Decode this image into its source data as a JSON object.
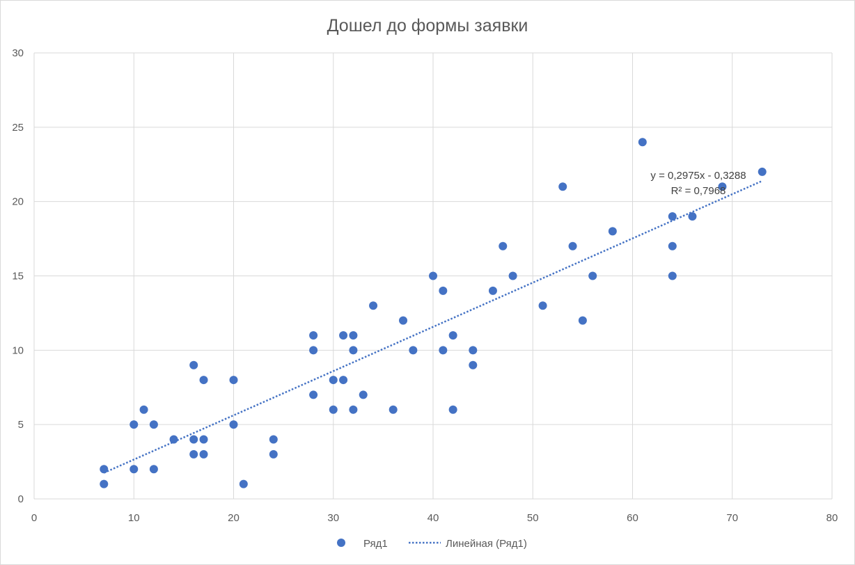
{
  "chart_data": {
    "type": "scatter",
    "title": "Дошел до формы заявки",
    "xlabel": "",
    "ylabel": "",
    "xlim": [
      0,
      80
    ],
    "ylim": [
      0,
      30
    ],
    "x_ticks": [
      0,
      10,
      20,
      30,
      40,
      50,
      60,
      70,
      80
    ],
    "y_ticks": [
      0,
      5,
      10,
      15,
      20,
      25,
      30
    ],
    "grid": true,
    "legend_position": "bottom",
    "series": [
      {
        "name": "Ряд1",
        "color": "#4472c4",
        "points": [
          [
            7,
            2
          ],
          [
            7,
            1
          ],
          [
            10,
            5
          ],
          [
            10,
            2
          ],
          [
            11,
            6
          ],
          [
            12,
            5
          ],
          [
            12,
            2
          ],
          [
            14,
            4
          ],
          [
            16,
            9
          ],
          [
            16,
            4
          ],
          [
            16,
            3
          ],
          [
            17,
            8
          ],
          [
            17,
            4
          ],
          [
            17,
            3
          ],
          [
            20,
            8
          ],
          [
            20,
            5
          ],
          [
            21,
            1
          ],
          [
            24,
            4
          ],
          [
            24,
            3
          ],
          [
            28,
            11
          ],
          [
            28,
            10
          ],
          [
            28,
            7
          ],
          [
            30,
            8
          ],
          [
            30,
            6
          ],
          [
            31,
            11
          ],
          [
            31,
            8
          ],
          [
            32,
            11
          ],
          [
            32,
            10
          ],
          [
            32,
            6
          ],
          [
            33,
            7
          ],
          [
            34,
            13
          ],
          [
            36,
            6
          ],
          [
            37,
            12
          ],
          [
            38,
            10
          ],
          [
            40,
            15
          ],
          [
            41,
            14
          ],
          [
            41,
            10
          ],
          [
            42,
            11
          ],
          [
            42,
            6
          ],
          [
            44,
            10
          ],
          [
            44,
            9
          ],
          [
            46,
            14
          ],
          [
            47,
            17
          ],
          [
            48,
            15
          ],
          [
            51,
            13
          ],
          [
            53,
            21
          ],
          [
            54,
            17
          ],
          [
            55,
            12
          ],
          [
            56,
            15
          ],
          [
            58,
            18
          ],
          [
            61,
            24
          ],
          [
            64,
            19
          ],
          [
            64,
            17
          ],
          [
            64,
            15
          ],
          [
            66,
            19
          ],
          [
            69,
            21
          ],
          [
            73,
            22
          ]
        ]
      }
    ],
    "trendline": {
      "name": "Линейная (Ряд1)",
      "type": "linear",
      "slope": 0.2975,
      "intercept": -0.3288,
      "x_range": [
        7,
        73
      ],
      "equation_label": "y = 0,2975x - 0,3288",
      "r2_label": "R² = 0,7968",
      "color": "#4472c4"
    }
  }
}
